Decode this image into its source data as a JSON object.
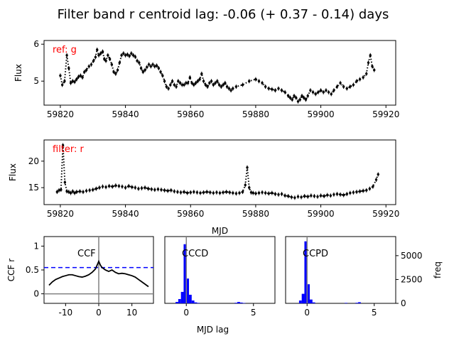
{
  "title": "Filter band r centroid lag: -0.06 (+ 0.37 - 0.14) days",
  "colors": {
    "data": "#000000",
    "label": "#ff0000",
    "hist": "#0000ff",
    "zero_line": "#808080",
    "threshold": "#0000ff"
  },
  "chart_data": [
    {
      "type": "scatter",
      "panel": "reference light curve",
      "annotation": "ref: g",
      "xlabel": "",
      "ylabel": "Flux",
      "xlim": [
        59815,
        59923
      ],
      "ylim": [
        4.35,
        6.1
      ],
      "xticks": [
        59820,
        59840,
        59860,
        59880,
        59900,
        59920
      ],
      "yticks": [
        5,
        6
      ],
      "grid": false,
      "points": [
        [
          59820.0,
          5.15
        ],
        [
          59820.6,
          4.9
        ],
        [
          59821.3,
          5.0
        ],
        [
          59822.0,
          5.7
        ],
        [
          59822.6,
          5.35
        ],
        [
          59823.2,
          4.95
        ],
        [
          59823.8,
          5.0
        ],
        [
          59824.4,
          4.98
        ],
        [
          59825.0,
          5.05
        ],
        [
          59825.6,
          5.12
        ],
        [
          59826.2,
          5.15
        ],
        [
          59826.8,
          5.1
        ],
        [
          59827.4,
          5.25
        ],
        [
          59828.0,
          5.3
        ],
        [
          59828.8,
          5.4
        ],
        [
          59829.5,
          5.45
        ],
        [
          59830.2,
          5.55
        ],
        [
          59830.8,
          5.65
        ],
        [
          59831.3,
          5.85
        ],
        [
          59831.8,
          5.7
        ],
        [
          59832.4,
          5.75
        ],
        [
          59833.0,
          5.8
        ],
        [
          59833.5,
          5.6
        ],
        [
          59834.0,
          5.55
        ],
        [
          59834.6,
          5.7
        ],
        [
          59835.2,
          5.6
        ],
        [
          59835.8,
          5.45
        ],
        [
          59836.4,
          5.25
        ],
        [
          59837.0,
          5.2
        ],
        [
          59837.6,
          5.3
        ],
        [
          59838.2,
          5.5
        ],
        [
          59838.8,
          5.7
        ],
        [
          59839.4,
          5.75
        ],
        [
          59840.0,
          5.7
        ],
        [
          59840.6,
          5.72
        ],
        [
          59841.2,
          5.68
        ],
        [
          59841.8,
          5.75
        ],
        [
          59842.4,
          5.7
        ],
        [
          59843.0,
          5.66
        ],
        [
          59843.6,
          5.55
        ],
        [
          59844.2,
          5.5
        ],
        [
          59844.8,
          5.35
        ],
        [
          59845.4,
          5.25
        ],
        [
          59846.0,
          5.3
        ],
        [
          59846.6,
          5.38
        ],
        [
          59847.2,
          5.45
        ],
        [
          59847.8,
          5.4
        ],
        [
          59848.4,
          5.45
        ],
        [
          59849.0,
          5.4
        ],
        [
          59849.6,
          5.42
        ],
        [
          59850.2,
          5.35
        ],
        [
          59850.8,
          5.25
        ],
        [
          59851.4,
          5.15
        ],
        [
          59852.0,
          5.0
        ],
        [
          59852.6,
          4.85
        ],
        [
          59853.2,
          4.8
        ],
        [
          59853.8,
          4.9
        ],
        [
          59854.4,
          5.0
        ],
        [
          59855.0,
          4.9
        ],
        [
          59855.6,
          4.85
        ],
        [
          59856.2,
          5.0
        ],
        [
          59856.8,
          4.95
        ],
        [
          59857.4,
          4.9
        ],
        [
          59858.0,
          4.9
        ],
        [
          59858.6,
          4.95
        ],
        [
          59859.2,
          4.95
        ],
        [
          59859.8,
          5.1
        ],
        [
          59860.4,
          4.95
        ],
        [
          59861.0,
          4.9
        ],
        [
          59861.6,
          4.95
        ],
        [
          59862.2,
          5.0
        ],
        [
          59862.8,
          5.05
        ],
        [
          59863.4,
          5.2
        ],
        [
          59864.0,
          5.0
        ],
        [
          59864.6,
          4.9
        ],
        [
          59865.2,
          4.85
        ],
        [
          59865.8,
          4.95
        ],
        [
          59866.4,
          5.0
        ],
        [
          59867.0,
          4.9
        ],
        [
          59867.6,
          4.95
        ],
        [
          59868.2,
          5.0
        ],
        [
          59868.8,
          4.9
        ],
        [
          59869.4,
          4.85
        ],
        [
          59870.0,
          4.9
        ],
        [
          59870.6,
          4.95
        ],
        [
          59871.2,
          4.85
        ],
        [
          59871.8,
          4.8
        ],
        [
          59872.4,
          4.75
        ],
        [
          59873.0,
          4.8
        ],
        [
          59874.0,
          4.85
        ],
        [
          59876.0,
          4.9
        ],
        [
          59878.0,
          5.0
        ],
        [
          59880.0,
          5.05
        ],
        [
          59881.0,
          5.0
        ],
        [
          59882.0,
          4.95
        ],
        [
          59883.0,
          4.85
        ],
        [
          59884.0,
          4.8
        ],
        [
          59885.0,
          4.78
        ],
        [
          59886.0,
          4.75
        ],
        [
          59887.0,
          4.8
        ],
        [
          59888.0,
          4.75
        ],
        [
          59889.0,
          4.7
        ],
        [
          59890.0,
          4.6
        ],
        [
          59890.6,
          4.55
        ],
        [
          59891.2,
          4.5
        ],
        [
          59891.8,
          4.6
        ],
        [
          59892.4,
          4.55
        ],
        [
          59893.0,
          4.45
        ],
        [
          59893.6,
          4.5
        ],
        [
          59894.2,
          4.6
        ],
        [
          59894.8,
          4.55
        ],
        [
          59895.4,
          4.5
        ],
        [
          59896.0,
          4.6
        ],
        [
          59896.8,
          4.75
        ],
        [
          59897.6,
          4.7
        ],
        [
          59898.4,
          4.65
        ],
        [
          59899.2,
          4.7
        ],
        [
          59900.0,
          4.75
        ],
        [
          59900.8,
          4.7
        ],
        [
          59901.6,
          4.75
        ],
        [
          59902.4,
          4.7
        ],
        [
          59903.2,
          4.65
        ],
        [
          59904.0,
          4.75
        ],
        [
          59905.0,
          4.85
        ],
        [
          59906.0,
          4.95
        ],
        [
          59907.0,
          4.85
        ],
        [
          59908.0,
          4.8
        ],
        [
          59909.0,
          4.85
        ],
        [
          59910.0,
          4.9
        ],
        [
          59911.0,
          5.0
        ],
        [
          59912.0,
          5.05
        ],
        [
          59913.0,
          5.1
        ],
        [
          59914.0,
          5.2
        ],
        [
          59914.6,
          5.5
        ],
        [
          59915.2,
          5.7
        ],
        [
          59915.8,
          5.4
        ],
        [
          59916.4,
          5.3
        ]
      ]
    },
    {
      "type": "scatter",
      "panel": "filter light curve",
      "annotation": "filter: r",
      "xlabel": "MJD",
      "ylabel": "Flux",
      "xlim": [
        59815,
        59923
      ],
      "ylim": [
        11.8,
        24.0
      ],
      "xticks": [
        59820,
        59840,
        59860,
        59880,
        59900,
        59920
      ],
      "yticks": [
        15,
        20
      ],
      "grid": false,
      "points": [
        [
          59819.0,
          14.2
        ],
        [
          59819.6,
          14.5
        ],
        [
          59820.2,
          14.6
        ],
        [
          59820.8,
          23.0
        ],
        [
          59821.4,
          16.0
        ],
        [
          59822.0,
          14.3
        ],
        [
          59822.6,
          14.2
        ],
        [
          59823.2,
          14.0
        ],
        [
          59823.8,
          14.3
        ],
        [
          59824.4,
          14.0
        ],
        [
          59825.0,
          14.2
        ],
        [
          59826.0,
          14.3
        ],
        [
          59827.0,
          14.2
        ],
        [
          59828.0,
          14.4
        ],
        [
          59829.0,
          14.5
        ],
        [
          59830.0,
          14.6
        ],
        [
          59831.0,
          14.8
        ],
        [
          59832.0,
          15.0
        ],
        [
          59833.0,
          15.2
        ],
        [
          59834.0,
          15.1
        ],
        [
          59835.0,
          15.3
        ],
        [
          59836.0,
          15.2
        ],
        [
          59837.0,
          15.4
        ],
        [
          59838.0,
          15.3
        ],
        [
          59839.0,
          15.2
        ],
        [
          59840.0,
          15.0
        ],
        [
          59841.0,
          15.3
        ],
        [
          59842.0,
          15.1
        ],
        [
          59843.0,
          15.0
        ],
        [
          59844.0,
          14.8
        ],
        [
          59845.0,
          14.9
        ],
        [
          59846.0,
          15.0
        ],
        [
          59847.0,
          14.8
        ],
        [
          59848.0,
          14.7
        ],
        [
          59849.0,
          14.6
        ],
        [
          59850.0,
          14.7
        ],
        [
          59851.0,
          14.6
        ],
        [
          59852.0,
          14.5
        ],
        [
          59853.0,
          14.4
        ],
        [
          59854.0,
          14.5
        ],
        [
          59855.0,
          14.3
        ],
        [
          59856.0,
          14.2
        ],
        [
          59857.0,
          14.1
        ],
        [
          59858.0,
          14.2
        ],
        [
          59859.0,
          14.0
        ],
        [
          59860.0,
          14.1
        ],
        [
          59861.0,
          14.2
        ],
        [
          59862.0,
          14.1
        ],
        [
          59863.0,
          14.0
        ],
        [
          59864.0,
          14.1
        ],
        [
          59865.0,
          14.2
        ],
        [
          59866.0,
          14.1
        ],
        [
          59867.0,
          14.0
        ],
        [
          59868.0,
          14.1
        ],
        [
          59869.0,
          14.0
        ],
        [
          59870.0,
          14.1
        ],
        [
          59871.0,
          14.2
        ],
        [
          59872.0,
          14.1
        ],
        [
          59873.0,
          14.0
        ],
        [
          59874.0,
          13.9
        ],
        [
          59875.0,
          14.0
        ],
        [
          59876.0,
          14.2
        ],
        [
          59876.8,
          15.5
        ],
        [
          59877.4,
          18.8
        ],
        [
          59878.0,
          15.0
        ],
        [
          59878.6,
          14.1
        ],
        [
          59879.2,
          14.0
        ],
        [
          59880.0,
          13.9
        ],
        [
          59881.0,
          14.0
        ],
        [
          59882.0,
          14.1
        ],
        [
          59883.0,
          14.0
        ],
        [
          59884.0,
          13.9
        ],
        [
          59885.0,
          14.0
        ],
        [
          59886.0,
          13.8
        ],
        [
          59887.0,
          13.7
        ],
        [
          59888.0,
          13.8
        ],
        [
          59889.0,
          13.5
        ],
        [
          59890.0,
          13.4
        ],
        [
          59891.0,
          13.2
        ],
        [
          59892.0,
          13.1
        ],
        [
          59893.0,
          13.3
        ],
        [
          59894.0,
          13.2
        ],
        [
          59895.0,
          13.4
        ],
        [
          59896.0,
          13.3
        ],
        [
          59897.0,
          13.5
        ],
        [
          59898.0,
          13.4
        ],
        [
          59899.0,
          13.3
        ],
        [
          59900.0,
          13.5
        ],
        [
          59901.0,
          13.4
        ],
        [
          59902.0,
          13.6
        ],
        [
          59903.0,
          13.5
        ],
        [
          59904.0,
          13.7
        ],
        [
          59905.0,
          13.8
        ],
        [
          59906.0,
          13.7
        ],
        [
          59907.0,
          13.6
        ],
        [
          59908.0,
          13.8
        ],
        [
          59909.0,
          14.0
        ],
        [
          59910.0,
          14.1
        ],
        [
          59911.0,
          14.2
        ],
        [
          59912.0,
          14.3
        ],
        [
          59913.0,
          14.4
        ],
        [
          59914.0,
          14.5
        ],
        [
          59915.0,
          14.8
        ],
        [
          59916.0,
          15.2
        ],
        [
          59917.0,
          16.5
        ],
        [
          59917.6,
          17.5
        ]
      ]
    },
    {
      "type": "line",
      "panel": "cross-correlation function",
      "annotation": "CCF",
      "xlabel": "",
      "ylabel": "CCF r",
      "xlim": [
        -16.5,
        16.5
      ],
      "ylim": [
        -0.2,
        1.2
      ],
      "xticks": [
        -10,
        0,
        10
      ],
      "yticks": [
        0.0,
        0.5,
        1.0
      ],
      "threshold": 0.55,
      "grid": false,
      "x": [
        -15,
        -14,
        -13,
        -12,
        -11,
        -10,
        -9,
        -8,
        -7,
        -6,
        -5,
        -4,
        -3,
        -2,
        -1,
        0,
        0.5,
        1,
        2,
        3,
        4,
        5,
        6,
        7,
        8,
        9,
        10,
        11,
        12,
        13,
        14,
        15
      ],
      "y": [
        0.18,
        0.25,
        0.3,
        0.33,
        0.36,
        0.38,
        0.4,
        0.4,
        0.38,
        0.36,
        0.35,
        0.37,
        0.4,
        0.45,
        0.52,
        0.68,
        0.6,
        0.55,
        0.5,
        0.47,
        0.5,
        0.45,
        0.42,
        0.43,
        0.42,
        0.4,
        0.38,
        0.35,
        0.3,
        0.25,
        0.2,
        0.15
      ]
    },
    {
      "type": "bar",
      "panel": "centroid distribution",
      "annotation": "CCCD",
      "xlabel": "MJD lag",
      "ylabel": "",
      "xlim": [
        -1.6,
        6.6
      ],
      "ylim": [
        0,
        7000
      ],
      "xticks": [
        0,
        5
      ],
      "bins": [
        -0.7,
        -0.5,
        -0.3,
        -0.1,
        0.1,
        0.3,
        0.5,
        0.7,
        0.9,
        3.7,
        3.9,
        4.1,
        4.3
      ],
      "counts": [
        150,
        450,
        1200,
        6200,
        2600,
        900,
        300,
        100,
        50,
        60,
        150,
        80,
        40
      ]
    },
    {
      "type": "bar",
      "panel": "peak distribution",
      "annotation": "CCPD",
      "xlabel": "",
      "ylabel": "freq",
      "xlim": [
        -1.6,
        6.6
      ],
      "ylim": [
        0,
        7000
      ],
      "xticks": [
        0,
        5
      ],
      "yticks": [
        0,
        2500,
        5000
      ],
      "bins": [
        -0.5,
        -0.3,
        -0.1,
        0.1,
        0.3,
        0.5,
        2.9,
        3.7,
        3.9
      ],
      "counts": [
        300,
        1000,
        6500,
        2000,
        400,
        100,
        50,
        60,
        120
      ]
    }
  ]
}
